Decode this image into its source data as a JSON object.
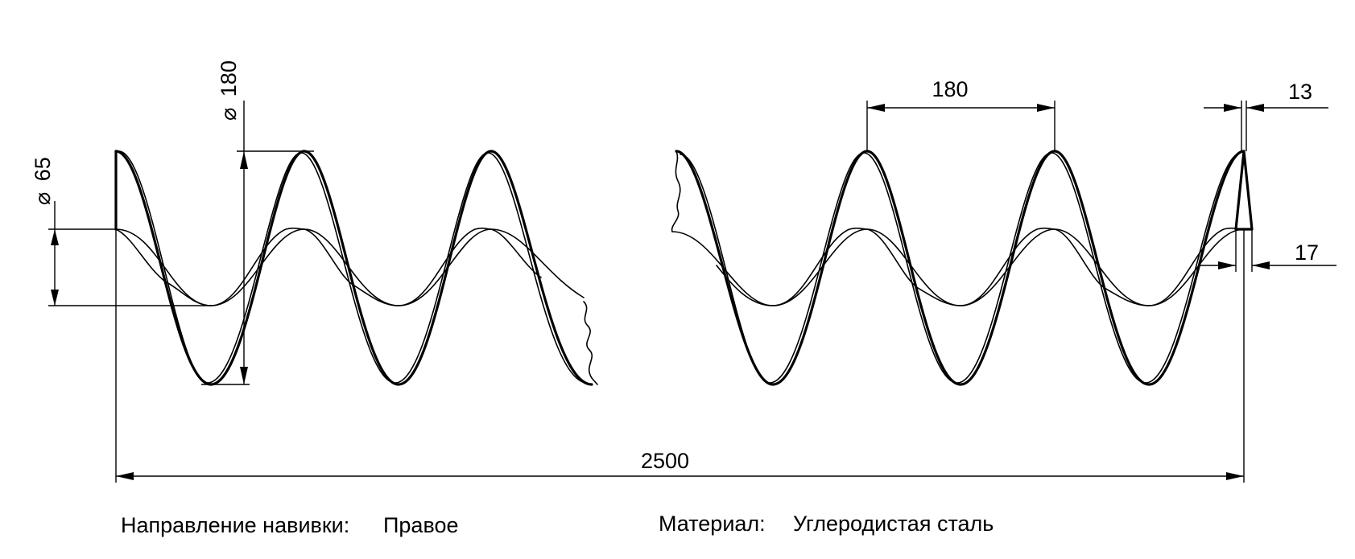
{
  "dimensions": {
    "outer_diameter": "180",
    "inner_diameter": "65",
    "pitch": "180",
    "flight_thickness": "13",
    "thickness_2": "17",
    "total_length": "2500",
    "diameter_symbol": "⌀"
  },
  "notes": {
    "winding_direction_label": "Направление навивки:",
    "winding_direction_value": "Правое",
    "material_label": "Материал:",
    "material_value": "Углеродистая сталь"
  },
  "colors": {
    "line": "#000000",
    "background": "#ffffff"
  }
}
